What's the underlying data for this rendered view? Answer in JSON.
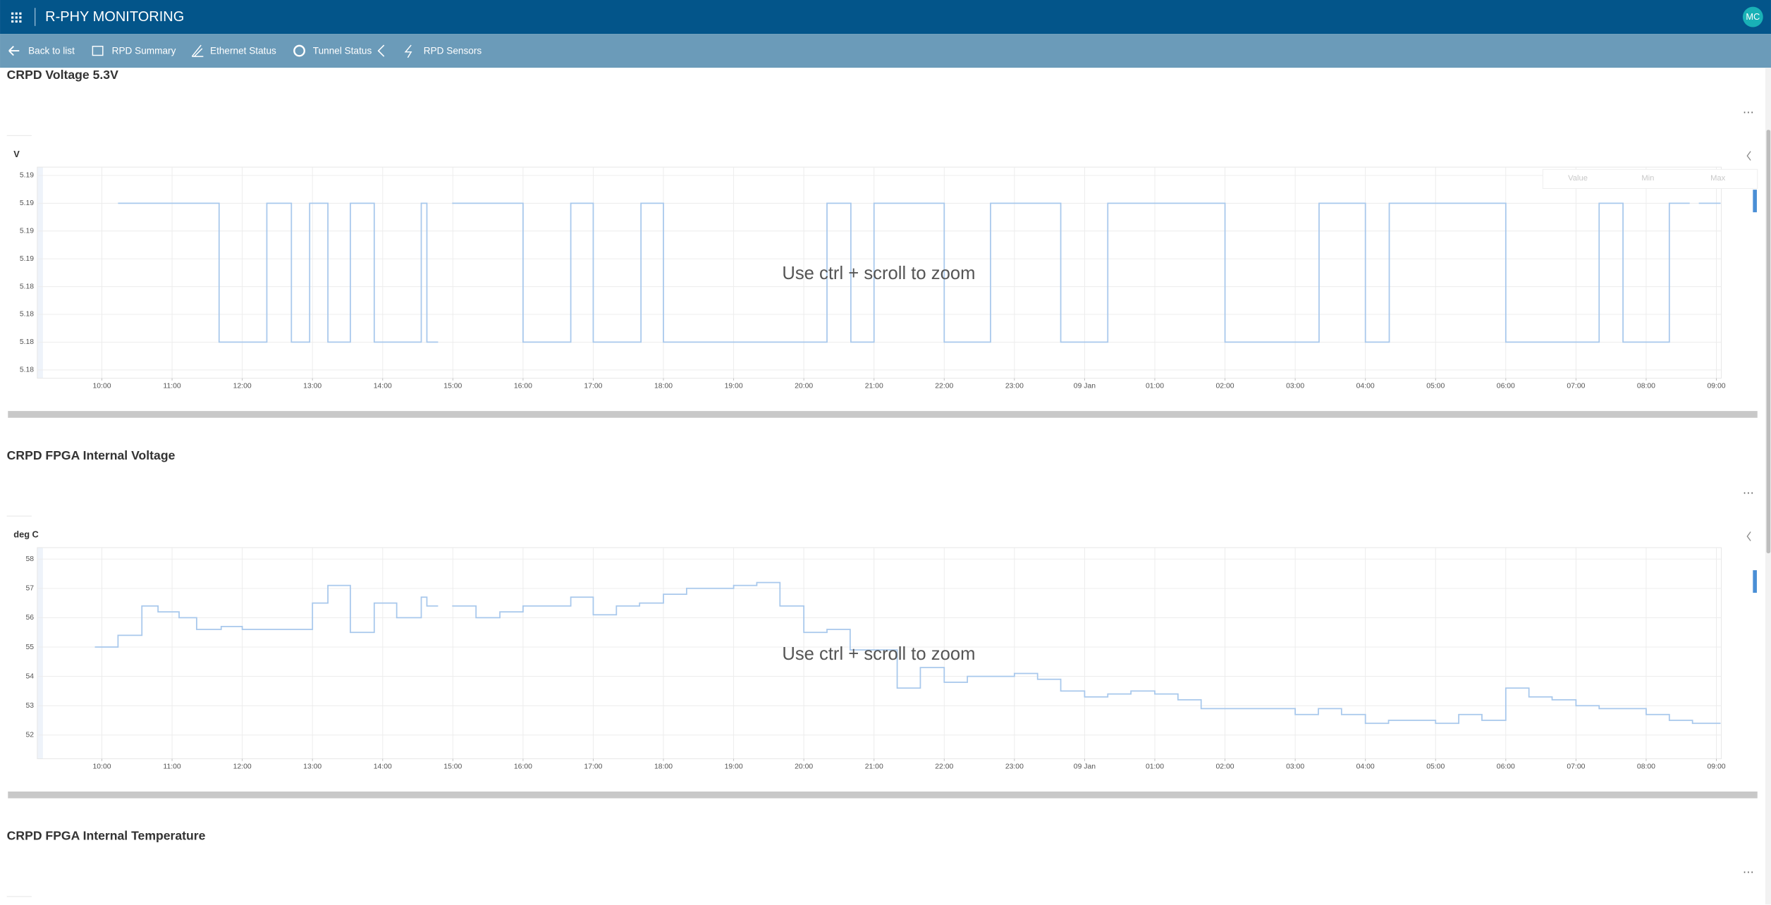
{
  "header": {
    "title": "R-PHY MONITORING",
    "avatar": "MC"
  },
  "nav": [
    "Back to list",
    "RPD Summary",
    "Ethernet Status",
    "Tunnel Status",
    "RPD Sensors"
  ],
  "chart_data": [
    {
      "type": "line",
      "step": "post",
      "title": "CRPD Voltage 5.3V",
      "y_label": "V",
      "annotation": "Use ctrl + scroll to zoom",
      "legend_headers": [
        "Value",
        "Min",
        "Max"
      ],
      "color": "#a8c8ec",
      "grid": true,
      "xlim": [
        9.08,
        33.07
      ],
      "ylim": [
        5.1782,
        5.1934
      ],
      "xticks": [
        {
          "value": 10,
          "label": "10:00"
        },
        {
          "value": 11,
          "label": "11:00"
        },
        {
          "value": 12,
          "label": "12:00"
        },
        {
          "value": 13,
          "label": "13:00"
        },
        {
          "value": 14,
          "label": "14:00"
        },
        {
          "value": 15,
          "label": "15:00"
        },
        {
          "value": 16,
          "label": "16:00"
        },
        {
          "value": 17,
          "label": "17:00"
        },
        {
          "value": 18,
          "label": "18:00"
        },
        {
          "value": 19,
          "label": "19:00"
        },
        {
          "value": 20,
          "label": "20:00"
        },
        {
          "value": 21,
          "label": "21:00"
        },
        {
          "value": 22,
          "label": "22:00"
        },
        {
          "value": 23,
          "label": "23:00"
        },
        {
          "value": 24,
          "label": "09 Jan"
        },
        {
          "value": 25,
          "label": "01:00"
        },
        {
          "value": 26,
          "label": "02:00"
        },
        {
          "value": 27,
          "label": "03:00"
        },
        {
          "value": 28,
          "label": "04:00"
        },
        {
          "value": 29,
          "label": "05:00"
        },
        {
          "value": 30,
          "label": "06:00"
        },
        {
          "value": 31,
          "label": "07:00"
        },
        {
          "value": 32,
          "label": "08:00"
        },
        {
          "value": 33,
          "label": "09:00"
        }
      ],
      "yticks": [
        {
          "value": 5.1928,
          "label": "5.19"
        },
        {
          "value": 5.1908,
          "label": "5.19"
        },
        {
          "value": 5.1888,
          "label": "5.19"
        },
        {
          "value": 5.1868,
          "label": "5.19"
        },
        {
          "value": 5.1848,
          "label": "5.18"
        },
        {
          "value": 5.1828,
          "label": "5.18"
        },
        {
          "value": 5.1808,
          "label": "5.18"
        },
        {
          "value": 5.1788,
          "label": "5.18"
        }
      ],
      "x": [
        10.23,
        11.67,
        12.35,
        12.7,
        12.96,
        13.22,
        13.54,
        13.88,
        14.55,
        14.63,
        14.79,
        14.9,
        14.99,
        16.0,
        16.68,
        17.0,
        17.68,
        18.0,
        20.33,
        20.67,
        21.0,
        22.0,
        22.66,
        23.66,
        24.33,
        26.0,
        27.34,
        28.0,
        28.34,
        30.0,
        31.33,
        31.67,
        32.33,
        32.62,
        32.7,
        32.75,
        33.06
      ],
      "values": [
        5.1908,
        5.1808,
        5.1908,
        5.1808,
        5.1908,
        5.1808,
        5.1908,
        5.1808,
        5.1908,
        5.1808,
        5.1808,
        null,
        5.1908,
        5.1808,
        5.1908,
        5.1808,
        5.1908,
        5.1808,
        5.1908,
        5.1808,
        5.1908,
        5.1808,
        5.1908,
        5.1808,
        5.1908,
        5.1808,
        5.1908,
        5.1808,
        5.1908,
        5.1808,
        5.1908,
        5.1808,
        5.1908,
        5.1908,
        null,
        5.1908,
        5.1908
      ]
    },
    {
      "type": "line",
      "step": "post",
      "title": "CRPD FPGA Internal Voltage",
      "y_label": "deg C",
      "annotation": "Use ctrl + scroll to zoom",
      "color": "#a8c8ec",
      "grid": true,
      "xlim": [
        9.08,
        33.07
      ],
      "ylim": [
        51.19,
        58.39
      ],
      "xticks": [
        {
          "value": 10,
          "label": "10:00"
        },
        {
          "value": 11,
          "label": "11:00"
        },
        {
          "value": 12,
          "label": "12:00"
        },
        {
          "value": 13,
          "label": "13:00"
        },
        {
          "value": 14,
          "label": "14:00"
        },
        {
          "value": 15,
          "label": "15:00"
        },
        {
          "value": 16,
          "label": "16:00"
        },
        {
          "value": 17,
          "label": "17:00"
        },
        {
          "value": 18,
          "label": "18:00"
        },
        {
          "value": 19,
          "label": "19:00"
        },
        {
          "value": 20,
          "label": "20:00"
        },
        {
          "value": 21,
          "label": "21:00"
        },
        {
          "value": 22,
          "label": "22:00"
        },
        {
          "value": 23,
          "label": "23:00"
        },
        {
          "value": 24,
          "label": "09 Jan"
        },
        {
          "value": 25,
          "label": "01:00"
        },
        {
          "value": 26,
          "label": "02:00"
        },
        {
          "value": 27,
          "label": "03:00"
        },
        {
          "value": 28,
          "label": "04:00"
        },
        {
          "value": 29,
          "label": "05:00"
        },
        {
          "value": 30,
          "label": "06:00"
        },
        {
          "value": 31,
          "label": "07:00"
        },
        {
          "value": 32,
          "label": "08:00"
        },
        {
          "value": 33,
          "label": "09:00"
        }
      ],
      "yticks": [
        52,
        53,
        54,
        55,
        56,
        57,
        58
      ],
      "x": [
        9.9,
        10.23,
        10.57,
        10.8,
        11.1,
        11.35,
        11.7,
        12.0,
        13.0,
        13.22,
        13.54,
        13.88,
        14.2,
        14.55,
        14.63,
        14.79,
        14.9,
        14.99,
        15.33,
        15.67,
        16.0,
        16.68,
        17.0,
        17.33,
        17.66,
        18.0,
        18.33,
        19.0,
        19.33,
        19.66,
        20.0,
        20.33,
        20.66,
        21.33,
        21.66,
        22.0,
        22.33,
        23.0,
        23.33,
        23.66,
        24.0,
        24.33,
        24.66,
        25.0,
        25.33,
        25.66,
        27.0,
        27.33,
        27.66,
        28.0,
        28.33,
        29.0,
        29.33,
        29.66,
        30.0,
        30.33,
        30.66,
        31.0,
        31.33,
        32.0,
        32.33,
        32.66,
        33.06
      ],
      "values": [
        55.0,
        55.4,
        56.4,
        56.2,
        56.0,
        55.6,
        55.7,
        55.6,
        56.5,
        57.1,
        55.5,
        56.5,
        56.0,
        56.7,
        56.4,
        56.4,
        null,
        56.4,
        56.0,
        56.2,
        56.4,
        56.7,
        56.1,
        56.4,
        56.5,
        56.8,
        57.0,
        57.1,
        57.2,
        56.4,
        55.5,
        55.6,
        54.9,
        53.6,
        54.3,
        53.8,
        54.0,
        54.1,
        53.9,
        53.5,
        53.3,
        53.4,
        53.5,
        53.4,
        53.2,
        52.9,
        52.7,
        52.9,
        52.7,
        52.4,
        52.5,
        52.4,
        52.7,
        52.5,
        53.6,
        53.3,
        53.2,
        53.0,
        52.9,
        52.7,
        52.5,
        52.4,
        52.4
      ]
    }
  ],
  "sections": [
    {
      "title": "CRPD FPGA Internal Temperature"
    }
  ]
}
